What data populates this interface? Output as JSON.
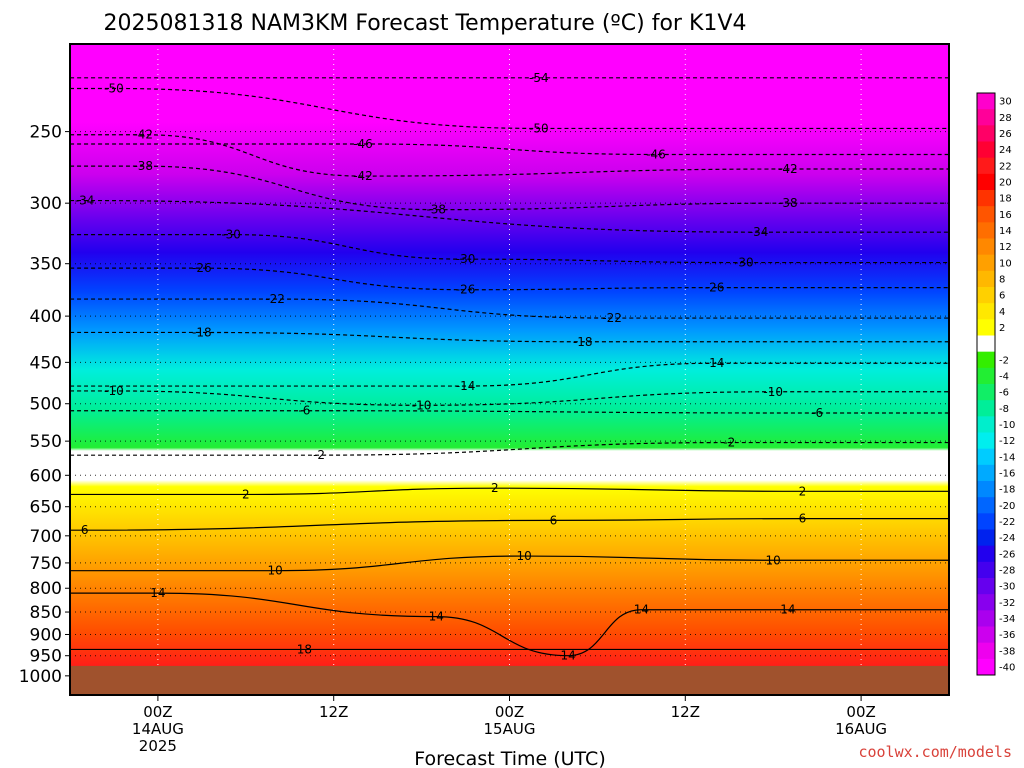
{
  "chart_data": {
    "type": "heatmap",
    "title": "2025081318 NAM3KM Forecast Temperature (ºC) for K1V4",
    "xlabel": "Forecast Time (UTC)",
    "credit": "coolwx.com/models",
    "y_axis": {
      "quantity": "pressure (hPa)",
      "scale": "log",
      "reversed": true,
      "range": [
        1050,
        200
      ],
      "ticks": [
        250,
        300,
        350,
        400,
        450,
        500,
        550,
        600,
        650,
        700,
        750,
        800,
        850,
        900,
        950,
        1000
      ]
    },
    "x_axis": {
      "range_hours": [
        -6,
        54
      ],
      "ticks": [
        {
          "hour": 0,
          "lines": [
            "00Z",
            "14AUG",
            "2025"
          ]
        },
        {
          "hour": 12,
          "lines": [
            "12Z"
          ]
        },
        {
          "hour": 24,
          "lines": [
            "00Z",
            "15AUG"
          ]
        },
        {
          "hour": 36,
          "lines": [
            "12Z"
          ]
        },
        {
          "hour": 48,
          "lines": [
            "00Z",
            "16AUG"
          ]
        }
      ]
    },
    "ground_level_hpa": 975,
    "grid": "dotted",
    "colorbar": {
      "placement": "right",
      "labels": [
        "30",
        "28",
        "26",
        "24",
        "22",
        "20",
        "18",
        "16",
        "14",
        "12",
        "10",
        "8",
        "6",
        "4",
        "2",
        "-2",
        "-4",
        "-6",
        "-8",
        "-10",
        "-12",
        "-14",
        "-16",
        "-18",
        "-20",
        "-22",
        "-24",
        "-26",
        "-28",
        "-30",
        "-32",
        "-34",
        "-36",
        "-38",
        "-40"
      ],
      "colors": [
        "#ff00cc",
        "#ff0099",
        "#ff0066",
        "#ff0033",
        "#ff1a1a",
        "#ff0000",
        "#ff3300",
        "#ff5500",
        "#ff6e00",
        "#ff8800",
        "#ffa000",
        "#ffb800",
        "#ffd000",
        "#ffe800",
        "#ffff00",
        "#ffffff",
        "#33ee00",
        "#22ee33",
        "#11ee66",
        "#00ee99",
        "#00eecc",
        "#00eeee",
        "#00ccff",
        "#00aaff",
        "#0088ff",
        "#0066ff",
        "#0044ff",
        "#0022ee",
        "#2200ee",
        "#4400ee",
        "#6600ee",
        "#8800ee",
        "#aa00ee",
        "#cc00ee",
        "#ee00ee",
        "#ff00ff"
      ]
    },
    "isotherm_labels": [
      {
        "v": "-54",
        "hour": 26,
        "p": 218
      },
      {
        "v": "-50",
        "hour": -3,
        "p": 224
      },
      {
        "v": "-50",
        "hour": 26,
        "p": 248
      },
      {
        "v": "-46",
        "hour": 14,
        "p": 258
      },
      {
        "v": "-46",
        "hour": 34,
        "p": 265
      },
      {
        "v": "-42",
        "hour": -1,
        "p": 252
      },
      {
        "v": "-42",
        "hour": 14,
        "p": 280
      },
      {
        "v": "-42",
        "hour": 43,
        "p": 275
      },
      {
        "v": "-38",
        "hour": -1,
        "p": 273
      },
      {
        "v": "-38",
        "hour": 19,
        "p": 305
      },
      {
        "v": "-38",
        "hour": 43,
        "p": 300
      },
      {
        "v": "-34",
        "hour": -5,
        "p": 298
      },
      {
        "v": "-34",
        "hour": 41,
        "p": 323
      },
      {
        "v": "-30",
        "hour": 5,
        "p": 325
      },
      {
        "v": "-30",
        "hour": 21,
        "p": 346
      },
      {
        "v": "-30",
        "hour": 40,
        "p": 349
      },
      {
        "v": "-26",
        "hour": 3,
        "p": 354
      },
      {
        "v": "-26",
        "hour": 21,
        "p": 374
      },
      {
        "v": "-26",
        "hour": 38,
        "p": 372
      },
      {
        "v": "-22",
        "hour": 8,
        "p": 383
      },
      {
        "v": "-22",
        "hour": 31,
        "p": 402
      },
      {
        "v": "-18",
        "hour": 3,
        "p": 417
      },
      {
        "v": "-18",
        "hour": 29,
        "p": 427
      },
      {
        "v": "-14",
        "hour": 21,
        "p": 478
      },
      {
        "v": "-14",
        "hour": 38,
        "p": 451
      },
      {
        "v": "-10",
        "hour": -3,
        "p": 484
      },
      {
        "v": "-10",
        "hour": 18,
        "p": 502
      },
      {
        "v": "-10",
        "hour": 42,
        "p": 485
      },
      {
        "v": "-6",
        "hour": 10,
        "p": 509
      },
      {
        "v": "-6",
        "hour": 45,
        "p": 512
      },
      {
        "v": "-2",
        "hour": 11,
        "p": 570
      },
      {
        "v": "-2",
        "hour": 39,
        "p": 552
      },
      {
        "v": "2",
        "hour": 6,
        "p": 630
      },
      {
        "v": "2",
        "hour": 23,
        "p": 620
      },
      {
        "v": "2",
        "hour": 44,
        "p": 625
      },
      {
        "v": "6",
        "hour": -5,
        "p": 690
      },
      {
        "v": "6",
        "hour": 27,
        "p": 673
      },
      {
        "v": "6",
        "hour": 44,
        "p": 670
      },
      {
        "v": "10",
        "hour": 8,
        "p": 765
      },
      {
        "v": "10",
        "hour": 25,
        "p": 737
      },
      {
        "v": "10",
        "hour": 42,
        "p": 745
      },
      {
        "v": "14",
        "hour": 0,
        "p": 810
      },
      {
        "v": "14",
        "hour": 19,
        "p": 860
      },
      {
        "v": "14",
        "hour": 33,
        "p": 845
      },
      {
        "v": "14",
        "hour": 43,
        "p": 845
      },
      {
        "v": "14",
        "hour": 28,
        "p": 950
      },
      {
        "v": "18",
        "hour": 10,
        "p": 935
      }
    ]
  }
}
